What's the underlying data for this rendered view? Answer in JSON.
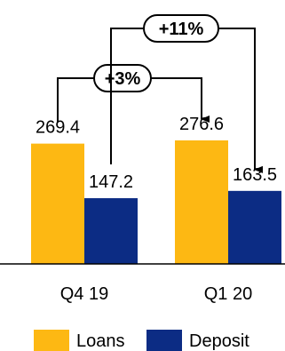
{
  "chart_data": {
    "type": "bar",
    "categories": [
      "Q4 19",
      "Q1 20"
    ],
    "series": [
      {
        "name": "Loans",
        "values": [
          269.4,
          276.6
        ],
        "color": "#FDB813"
      },
      {
        "name": "Deposit",
        "values": [
          147.2,
          163.5
        ],
        "color": "#0C2C84"
      }
    ],
    "data_labels": [
      [
        "269.4",
        "276.6"
      ],
      [
        "147.2",
        "163.5"
      ]
    ],
    "growth_annotations": [
      {
        "label": "+3%",
        "series": "Loans",
        "from": "Q4 19",
        "to": "Q1 20"
      },
      {
        "label": "+11%",
        "series": "Deposit",
        "from": "Q4 19",
        "to": "Q1 20"
      }
    ],
    "legend_position": "bottom",
    "grid": false
  }
}
